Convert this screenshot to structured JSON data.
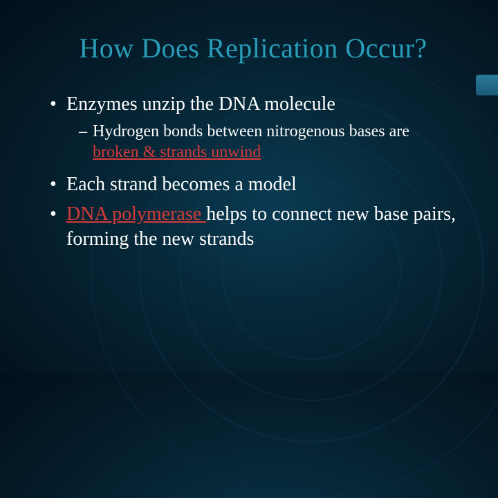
{
  "slide": {
    "title": "How Does Replication Occur?",
    "title_color": "#2a9db8",
    "title_fontsize": 40,
    "text_color": "#fdfdfd",
    "highlight_color": "#d43a3a",
    "background_gradient": [
      "#0a3a52",
      "#062838",
      "#041a28",
      "#020e18"
    ],
    "accent_color": "#2a7a9a",
    "b1_text": "Enzymes unzip the DNA molecule",
    "sub1_pre": "Hydrogen bonds between nitrogenous bases are ",
    "sub1_hl": "broken  & strands unwind",
    "b2_text": "Each strand becomes a model",
    "b3_hl": "DNA polymerase ",
    "b3_post": "helps to connect new base pairs, forming the new strands",
    "main_fontsize": 28,
    "sub_fontsize": 24
  }
}
